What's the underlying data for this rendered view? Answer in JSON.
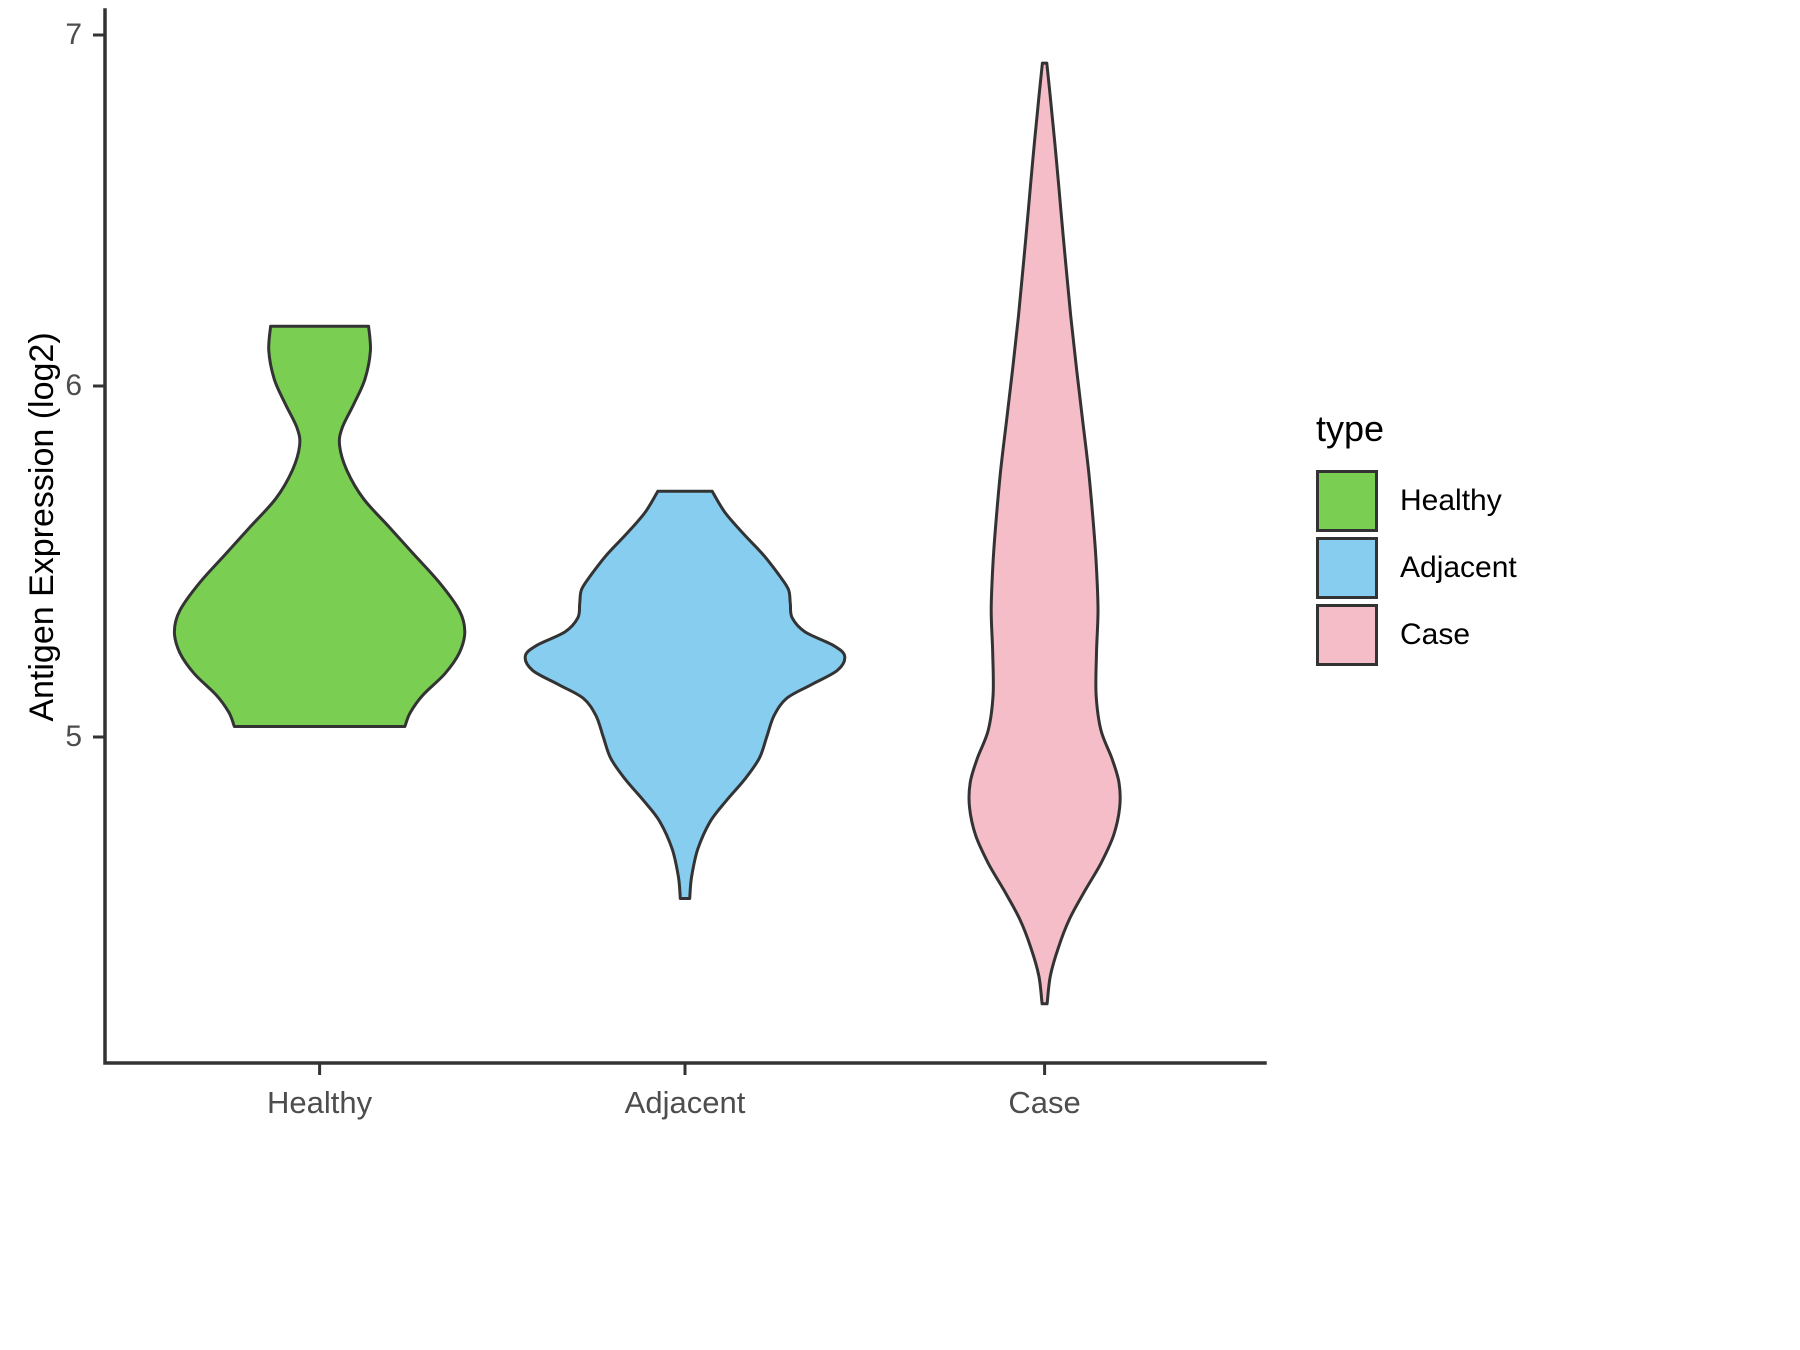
{
  "chart_data": {
    "type": "violin",
    "title": "",
    "xlabel": "",
    "ylabel": "Antigen Expression (log2)",
    "ylim": [
      4.05,
      7.05
    ],
    "yticks": [
      7,
      6,
      5
    ],
    "categories": [
      "Healthy",
      "Adjacent",
      "Case"
    ],
    "grid": false,
    "legend_position": "right",
    "axis_color": "#333333",
    "stroke_color": "#333333",
    "tick_label_color": "#4d4d4d",
    "legend": {
      "title": "type",
      "entries": [
        {
          "label": "Healthy",
          "color": "#7ACE52"
        },
        {
          "label": "Adjacent",
          "color": "#86CDF0"
        },
        {
          "label": "Case",
          "color": "#F5BDC8"
        }
      ]
    },
    "series": [
      {
        "name": "Healthy",
        "color": "#7ACE52",
        "profile": [
          [
            6.17,
            0.135
          ],
          [
            6.1,
            0.14
          ],
          [
            6.02,
            0.125
          ],
          [
            5.95,
            0.095
          ],
          [
            5.88,
            0.062
          ],
          [
            5.83,
            0.055
          ],
          [
            5.76,
            0.075
          ],
          [
            5.68,
            0.12
          ],
          [
            5.6,
            0.19
          ],
          [
            5.52,
            0.26
          ],
          [
            5.44,
            0.33
          ],
          [
            5.36,
            0.385
          ],
          [
            5.3,
            0.4
          ],
          [
            5.24,
            0.385
          ],
          [
            5.18,
            0.345
          ],
          [
            5.12,
            0.285
          ],
          [
            5.07,
            0.25
          ],
          [
            5.03,
            0.235
          ]
        ]
      },
      {
        "name": "Adjacent",
        "color": "#86CDF0",
        "profile": [
          [
            5.7,
            0.075
          ],
          [
            5.64,
            0.11
          ],
          [
            5.58,
            0.16
          ],
          [
            5.52,
            0.215
          ],
          [
            5.46,
            0.26
          ],
          [
            5.42,
            0.285
          ],
          [
            5.38,
            0.29
          ],
          [
            5.34,
            0.295
          ],
          [
            5.3,
            0.33
          ],
          [
            5.26,
            0.41
          ],
          [
            5.23,
            0.44
          ],
          [
            5.19,
            0.42
          ],
          [
            5.15,
            0.35
          ],
          [
            5.11,
            0.28
          ],
          [
            5.06,
            0.245
          ],
          [
            5.0,
            0.225
          ],
          [
            4.94,
            0.205
          ],
          [
            4.88,
            0.165
          ],
          [
            4.82,
            0.115
          ],
          [
            4.76,
            0.07
          ],
          [
            4.68,
            0.035
          ],
          [
            4.6,
            0.018
          ],
          [
            4.54,
            0.013
          ]
        ]
      },
      {
        "name": "Case",
        "color": "#F5BDC8",
        "profile": [
          [
            6.92,
            0.006
          ],
          [
            6.8,
            0.018
          ],
          [
            6.65,
            0.032
          ],
          [
            6.5,
            0.045
          ],
          [
            6.35,
            0.058
          ],
          [
            6.2,
            0.072
          ],
          [
            6.05,
            0.088
          ],
          [
            5.9,
            0.105
          ],
          [
            5.75,
            0.122
          ],
          [
            5.6,
            0.135
          ],
          [
            5.48,
            0.143
          ],
          [
            5.36,
            0.147
          ],
          [
            5.24,
            0.143
          ],
          [
            5.12,
            0.142
          ],
          [
            5.02,
            0.155
          ],
          [
            4.94,
            0.185
          ],
          [
            4.87,
            0.205
          ],
          [
            4.8,
            0.207
          ],
          [
            4.72,
            0.19
          ],
          [
            4.64,
            0.155
          ],
          [
            4.56,
            0.11
          ],
          [
            4.48,
            0.068
          ],
          [
            4.4,
            0.038
          ],
          [
            4.32,
            0.016
          ],
          [
            4.24,
            0.007
          ]
        ]
      }
    ]
  }
}
